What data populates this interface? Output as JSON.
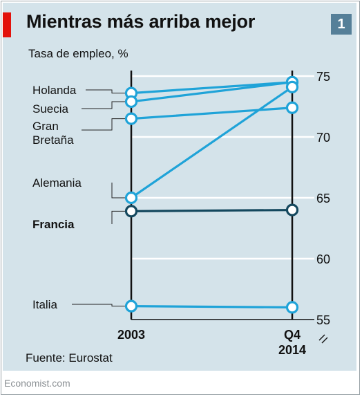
{
  "header": {
    "title": "Mientras más arriba mejor",
    "badge": "1"
  },
  "chart_data": {
    "type": "line",
    "title": "Mientras más arriba mejor",
    "subtitle": "Tasa de empleo, %",
    "x": [
      "2003",
      "Q4 2014"
    ],
    "x_tick_labels": [
      [
        "2003"
      ],
      [
        "Q4",
        "2014"
      ]
    ],
    "ylim": [
      55,
      75
    ],
    "y_ticks": [
      55,
      60,
      65,
      70,
      75
    ],
    "y_axis_position": "right",
    "grid": true,
    "series": [
      {
        "name": "Holanda",
        "label_lines": [
          "Holanda"
        ],
        "values": [
          73.6,
          74.5
        ],
        "color": "#1fa3d8",
        "bold": false
      },
      {
        "name": "Suecia",
        "label_lines": [
          "Suecia"
        ],
        "values": [
          72.9,
          74.5
        ],
        "color": "#1fa3d8",
        "bold": false
      },
      {
        "name": "Gran Bretaña",
        "label_lines": [
          "Gran",
          "Bretaña"
        ],
        "values": [
          71.5,
          72.4
        ],
        "color": "#1fa3d8",
        "bold": false
      },
      {
        "name": "Alemania",
        "label_lines": [
          "Alemania"
        ],
        "values": [
          65.0,
          74.1
        ],
        "color": "#1fa3d8",
        "bold": false
      },
      {
        "name": "Francia",
        "label_lines": [
          "Francia"
        ],
        "values": [
          63.9,
          64.0
        ],
        "color": "#14485e",
        "bold": true
      },
      {
        "name": "Italia",
        "label_lines": [
          "Italia"
        ],
        "values": [
          56.1,
          56.0
        ],
        "color": "#1fa3d8",
        "bold": false
      }
    ]
  },
  "source": "Fuente: Eurostat",
  "footer": "Economist.com"
}
